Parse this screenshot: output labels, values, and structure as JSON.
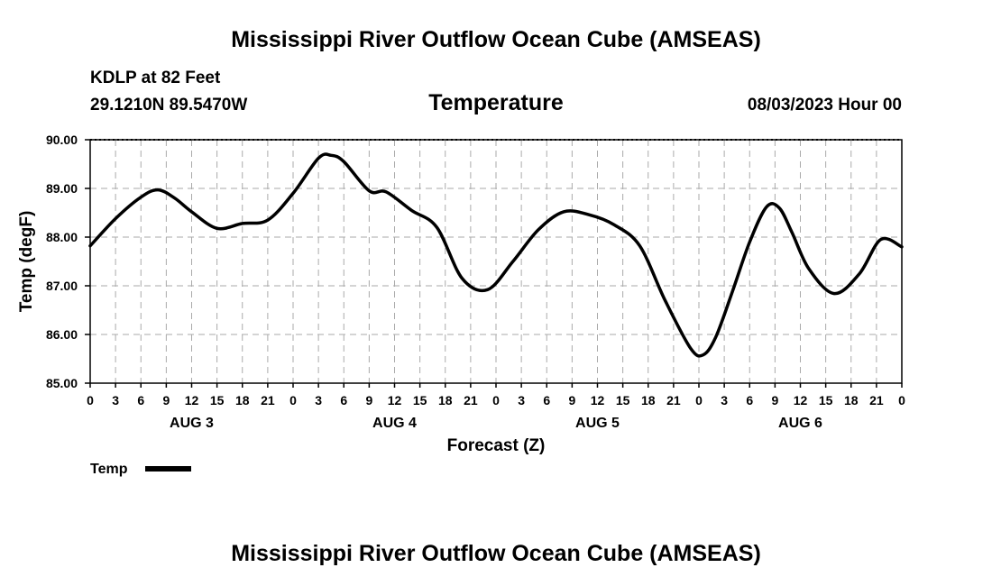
{
  "header": {
    "title": "Mississippi River Outflow Ocean Cube (AMSEAS)",
    "station": "KDLP at 82 Feet",
    "coords": "29.1210N  89.5470W",
    "datetime": "08/03/2023 Hour 00",
    "footer_title": "Mississippi River Outflow Ocean Cube (AMSEAS)"
  },
  "chart_data": {
    "type": "line",
    "title": "Temperature",
    "xlabel": "Forecast (Z)",
    "ylabel": "Temp (degF)",
    "ylim": [
      85,
      90
    ],
    "xlim": [
      0,
      96
    ],
    "grid": true,
    "yticks": [
      "85.00",
      "86.00",
      "87.00",
      "88.00",
      "89.00",
      "90.00"
    ],
    "xtick_labels": [
      "0",
      "3",
      "6",
      "9",
      "12",
      "15",
      "18",
      "21",
      "0",
      "3",
      "6",
      "9",
      "12",
      "15",
      "18",
      "21",
      "0",
      "3",
      "6",
      "9",
      "12",
      "15",
      "18",
      "21",
      "0",
      "3",
      "6",
      "9",
      "12",
      "15",
      "18",
      "21",
      "0"
    ],
    "day_labels": [
      {
        "label": "AUG 3",
        "hour": 12
      },
      {
        "label": "AUG 4",
        "hour": 36
      },
      {
        "label": "AUG 5",
        "hour": 60
      },
      {
        "label": "AUG 6",
        "hour": 84
      }
    ],
    "legend": {
      "label": "Temp",
      "position": "bottom-left"
    },
    "series": [
      {
        "name": "Temp",
        "x": [
          0,
          3,
          6,
          8,
          10,
          12,
          15,
          18,
          21,
          24,
          27,
          28.5,
          30,
          33,
          35,
          38,
          41,
          44,
          47,
          50,
          53,
          56,
          59,
          62,
          65,
          68,
          71,
          72.5,
          74,
          76,
          78,
          80,
          81.5,
          83,
          85,
          88,
          91,
          93.5,
          96
        ],
        "values": [
          87.82,
          88.38,
          88.82,
          88.97,
          88.8,
          88.52,
          88.18,
          88.28,
          88.35,
          88.9,
          89.62,
          89.68,
          89.55,
          88.95,
          88.93,
          88.55,
          88.2,
          87.15,
          86.92,
          87.5,
          88.15,
          88.52,
          88.46,
          88.25,
          87.82,
          86.7,
          85.72,
          85.58,
          85.95,
          86.9,
          87.9,
          88.62,
          88.6,
          88.1,
          87.35,
          86.84,
          87.25,
          87.95,
          87.8
        ]
      }
    ]
  }
}
